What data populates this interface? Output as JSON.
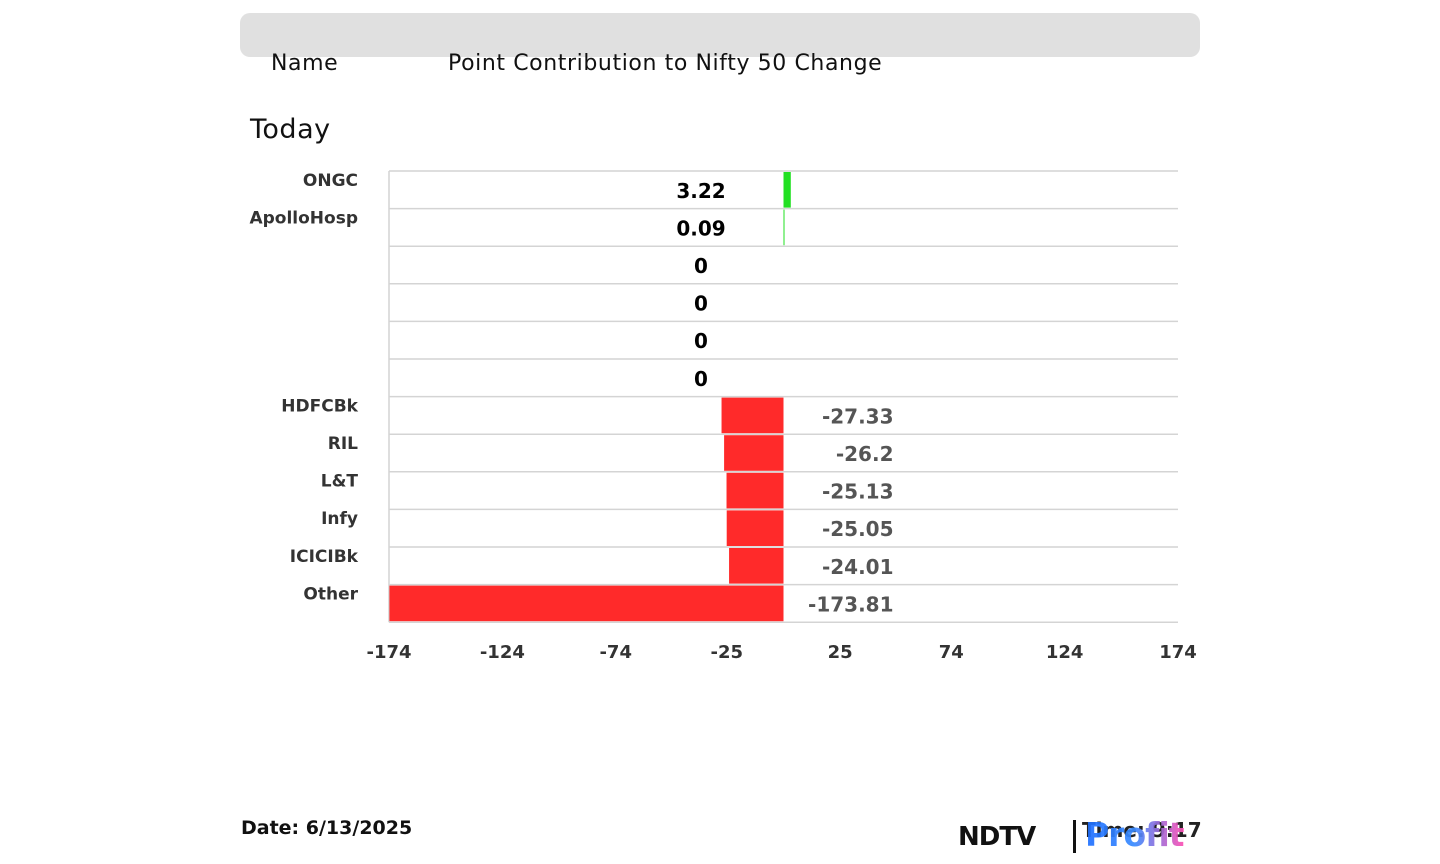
{
  "header": {
    "name_label": "Name",
    "title": "Point Contribution to Nifty 50 Change",
    "period": "Today"
  },
  "footer": {
    "date": "Date: 6/13/2025",
    "time": "Time: 9:17",
    "logo_ndtv": "NDTV",
    "logo_profit": "Profit"
  },
  "colors": {
    "positive": "#22e022",
    "negative": "#ff2a2a",
    "grid": "#d4d4d4"
  },
  "chart_data": {
    "type": "bar",
    "orientation": "horizontal",
    "categories": [
      "ONGC",
      "ApolloHosp",
      "",
      "",
      "",
      "",
      "HDFCBk",
      "RIL",
      "L&T",
      "Infy",
      "ICICIBk",
      "Other"
    ],
    "values": [
      3.22,
      0.09,
      0,
      0,
      0,
      0,
      -27.33,
      -26.2,
      -25.13,
      -25.05,
      -24.01,
      -173.81
    ],
    "value_labels": [
      "3.22",
      "0.09",
      "0",
      "0",
      "0",
      "0",
      "-27.33",
      "-26.2",
      "-25.13",
      "-25.05",
      "-24.01",
      "-173.81"
    ],
    "xticks": [
      "-174",
      "-124",
      "-74",
      "-25",
      "25",
      "74",
      "124",
      "174"
    ],
    "xlim": [
      -174,
      174
    ],
    "grid": true
  }
}
